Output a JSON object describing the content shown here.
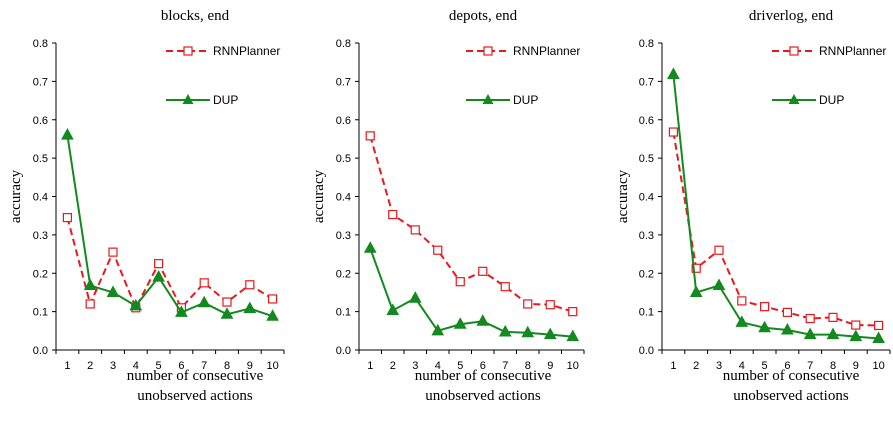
{
  "chart_data": [
    {
      "type": "line",
      "title": "blocks, end",
      "xlabel_lines": [
        "number of consecutive",
        "unobserved actions"
      ],
      "ylabel": "accuracy",
      "x": [
        1,
        2,
        3,
        4,
        5,
        6,
        7,
        8,
        9,
        10
      ],
      "ylim": [
        0,
        0.8
      ],
      "yticks": [
        "0.0",
        "0.1",
        "0.2",
        "0.3",
        "0.4",
        "0.5",
        "0.6",
        "0.7",
        "0.8"
      ],
      "legend_position": "top-right",
      "series": [
        {
          "name": "RNNPlanner",
          "color": "#e8191e",
          "style": "dashed",
          "marker": "square-open",
          "values": [
            0.345,
            0.12,
            0.255,
            0.11,
            0.225,
            0.11,
            0.175,
            0.125,
            0.17,
            0.133
          ]
        },
        {
          "name": "DUP",
          "color": "#14891f",
          "style": "solid",
          "marker": "triangle",
          "values": [
            0.56,
            0.168,
            0.15,
            0.115,
            0.19,
            0.098,
            0.123,
            0.093,
            0.108,
            0.088
          ]
        }
      ]
    },
    {
      "type": "line",
      "title": "depots, end",
      "xlabel_lines": [
        "number of consecutive",
        "unobserved actions"
      ],
      "ylabel": "accuracy",
      "x": [
        1,
        2,
        3,
        4,
        5,
        6,
        7,
        8,
        9,
        10
      ],
      "ylim": [
        0,
        0.8
      ],
      "yticks": [
        "0.0",
        "0.1",
        "0.2",
        "0.3",
        "0.4",
        "0.5",
        "0.6",
        "0.7",
        "0.8"
      ],
      "legend_position": "top-right",
      "series": [
        {
          "name": "RNNPlanner",
          "color": "#e8191e",
          "style": "dashed",
          "marker": "square-open",
          "values": [
            0.558,
            0.353,
            0.313,
            0.26,
            0.178,
            0.205,
            0.165,
            0.12,
            0.118,
            0.1
          ]
        },
        {
          "name": "DUP",
          "color": "#14891f",
          "style": "solid",
          "marker": "triangle",
          "values": [
            0.265,
            0.103,
            0.135,
            0.05,
            0.067,
            0.075,
            0.047,
            0.045,
            0.04,
            0.035
          ]
        }
      ]
    },
    {
      "type": "line",
      "title": "driverlog, end",
      "xlabel_lines": [
        "number of consecutive",
        "unobserved actions"
      ],
      "ylabel": "accuracy",
      "x": [
        1,
        2,
        3,
        4,
        5,
        6,
        7,
        8,
        9,
        10
      ],
      "ylim": [
        0,
        0.8
      ],
      "yticks": [
        "0.0",
        "0.1",
        "0.2",
        "0.3",
        "0.4",
        "0.5",
        "0.6",
        "0.7",
        "0.8"
      ],
      "legend_position": "top-right",
      "series": [
        {
          "name": "RNNPlanner",
          "color": "#e8191e",
          "style": "dashed",
          "marker": "square-open",
          "values": [
            0.568,
            0.213,
            0.26,
            0.128,
            0.113,
            0.098,
            0.082,
            0.085,
            0.065,
            0.064
          ]
        },
        {
          "name": "DUP",
          "color": "#14891f",
          "style": "solid",
          "marker": "triangle",
          "values": [
            0.718,
            0.15,
            0.168,
            0.072,
            0.058,
            0.052,
            0.04,
            0.04,
            0.035,
            0.03
          ]
        }
      ]
    }
  ]
}
